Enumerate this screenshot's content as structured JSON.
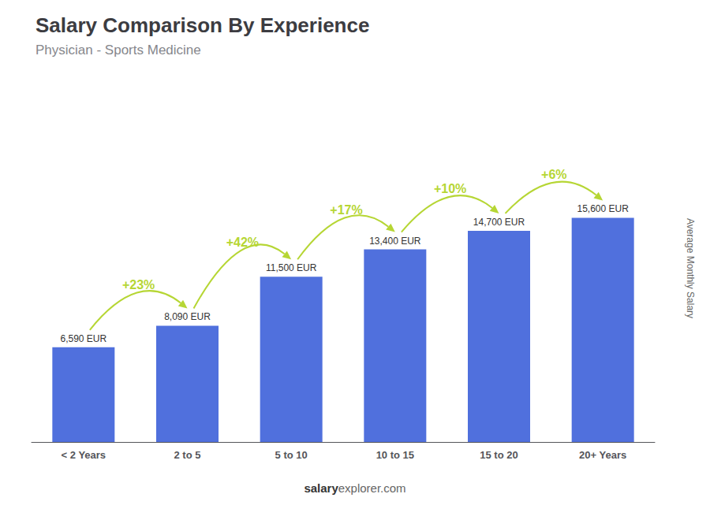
{
  "chart_data": {
    "type": "bar",
    "title": "Salary Comparison By Experience",
    "subtitle": "Physician - Sports Medicine",
    "ylabel": "Average Monthly Salary",
    "categories": [
      "< 2 Years",
      "2 to 5",
      "5 to 10",
      "10 to 15",
      "15 to 20",
      "20+ Years"
    ],
    "values": [
      6590,
      8090,
      11500,
      13400,
      14700,
      15600
    ],
    "value_labels": [
      "6,590 EUR",
      "8,090 EUR",
      "11,500 EUR",
      "13,400 EUR",
      "14,700 EUR",
      "15,600 EUR"
    ],
    "data_labels": true,
    "annotations": [
      "+23%",
      "+42%",
      "+17%",
      "+10%",
      "+6%"
    ],
    "footer": [
      "salary",
      "explorer.com"
    ],
    "ylim": [
      0,
      24180
    ],
    "grid": false,
    "tick_labels": "x"
  }
}
